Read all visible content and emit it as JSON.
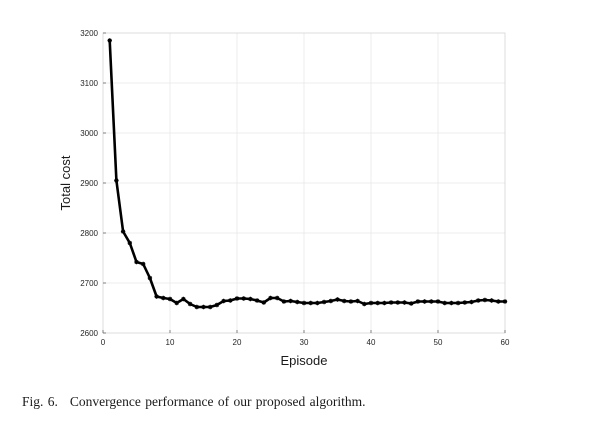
{
  "caption": {
    "label": "Fig. 6.",
    "text": "Convergence performance of our proposed algorithm."
  },
  "chart_data": {
    "type": "line",
    "title": "",
    "xlabel": "Episode",
    "ylabel": "Total cost",
    "xlim": [
      0,
      60
    ],
    "ylim": [
      2600,
      3200
    ],
    "xticks": [
      0,
      10,
      20,
      30,
      40,
      50,
      60
    ],
    "yticks": [
      2600,
      2700,
      2800,
      2900,
      3000,
      3100,
      3200
    ],
    "grid": true,
    "line_color": "#000000",
    "grid_color": "#e6e6e6",
    "series": [
      {
        "x": [
          1,
          2,
          3,
          4,
          5,
          6,
          7,
          8,
          9,
          10,
          11,
          12,
          13,
          14,
          15,
          16,
          17,
          18,
          19,
          20,
          21,
          22,
          23,
          24,
          25,
          26,
          27,
          28,
          29,
          30,
          31,
          32,
          33,
          34,
          35,
          36,
          37,
          38,
          39,
          40,
          41,
          42,
          43,
          44,
          45,
          46,
          47,
          48,
          49,
          50,
          51,
          52,
          53,
          54,
          55,
          56,
          57,
          58,
          59,
          60
        ],
        "values": [
          3185,
          2905,
          2803,
          2780,
          2742,
          2738,
          2710,
          2673,
          2670,
          2668,
          2660,
          2668,
          2658,
          2652,
          2652,
          2652,
          2656,
          2664,
          2665,
          2669,
          2669,
          2668,
          2665,
          2661,
          2670,
          2670,
          2663,
          2664,
          2662,
          2660,
          2660,
          2660,
          2662,
          2664,
          2667,
          2664,
          2663,
          2664,
          2658,
          2660,
          2660,
          2660,
          2661,
          2661,
          2661,
          2659,
          2663,
          2663,
          2663,
          2663,
          2660,
          2660,
          2660,
          2661,
          2662,
          2665,
          2666,
          2665,
          2663,
          2663
        ]
      }
    ]
  }
}
